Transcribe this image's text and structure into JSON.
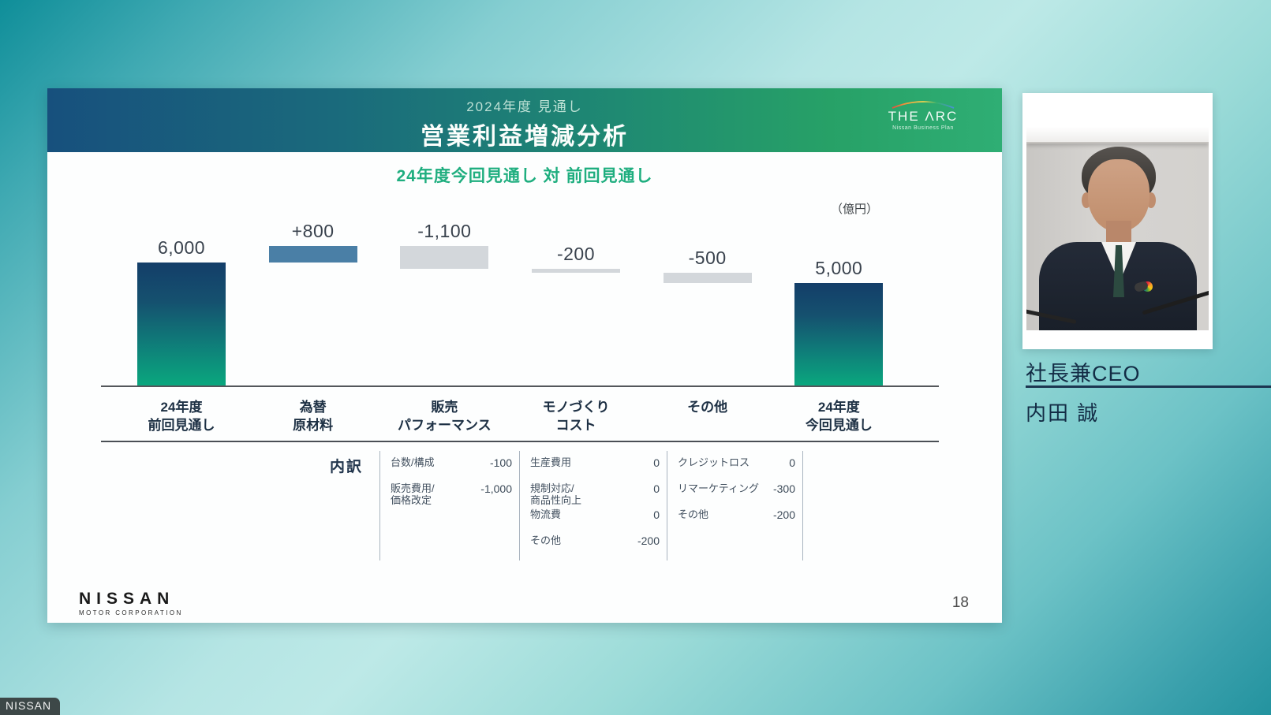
{
  "slide": {
    "header": {
      "eyebrow": "2024年度 見通し",
      "title": "営業利益増減分析",
      "logo_text": "THE ΛRC",
      "logo_subtext": "Nissan Business Plan"
    },
    "comparison_title": "24年度今回見通し 対 前回見通し",
    "footer": {
      "brand": "NISSAN",
      "brand_sub": "MOTOR CORPORATION",
      "page_number": "18"
    }
  },
  "chart_data": {
    "type": "bar",
    "subtype": "waterfall",
    "title": "営業利益増減分析",
    "period": "2024年度 見通し",
    "comparison": "24年度今回見通し 対 前回見通し",
    "unit": "億円",
    "unit_label": "（億円）",
    "xlabel": "",
    "ylabel": "",
    "ylim": [
      0,
      6800
    ],
    "grid": false,
    "legend": false,
    "categories": [
      [
        "24年度",
        "前回見通し"
      ],
      [
        "為替",
        "原材料"
      ],
      [
        "販売",
        "パフォーマンス"
      ],
      [
        "モノづくり",
        "コスト"
      ],
      [
        "その他"
      ],
      [
        "24年度",
        "今回見通し"
      ]
    ],
    "values": [
      6000,
      800,
      -1100,
      -200,
      -500,
      5000
    ],
    "value_labels": [
      "6,000",
      "+800",
      "-1,100",
      "-200",
      "-500",
      "5,000"
    ],
    "bar_roles": [
      "total",
      "increase",
      "decrease",
      "decrease",
      "decrease",
      "total"
    ],
    "breakdown": {
      "label": "内訳",
      "groups": [
        {
          "of": "販売パフォーマンス",
          "items": [
            {
              "lines": [
                "台数/構成"
              ],
              "value": "-100"
            },
            {
              "lines": [
                "販売費用/",
                "価格改定"
              ],
              "value": "-1,000"
            }
          ]
        },
        {
          "of": "モノづくりコスト",
          "items": [
            {
              "lines": [
                "生産費用"
              ],
              "value": "0"
            },
            {
              "lines": [
                "規制対応/",
                "商品性向上"
              ],
              "value": "0"
            },
            {
              "lines": [
                "物流費"
              ],
              "value": "0"
            },
            {
              "lines": [
                "その他"
              ],
              "value": "-200"
            }
          ]
        },
        {
          "of": "その他",
          "items": [
            {
              "lines": [
                "クレジットロス"
              ],
              "value": "0"
            },
            {
              "lines": [
                "リマーケティング"
              ],
              "value": "-300"
            },
            {
              "lines": [
                "その他"
              ],
              "value": "-200"
            }
          ]
        }
      ]
    },
    "colors": {
      "bar_total_top": "#143e69",
      "bar_total_bottom": "#0aa87e",
      "bar_increase": "#4a7fa6",
      "bar_decrease": "#d3d7db",
      "subtitle_green": "#1fae7f",
      "header_gradient_left": "#17507d",
      "header_gradient_right": "#2fae74",
      "background_teal": "#23939f"
    }
  },
  "speaker": {
    "title": "社長兼CEO",
    "name": "内田 誠"
  },
  "watermark": {
    "label": "NISSAN"
  }
}
